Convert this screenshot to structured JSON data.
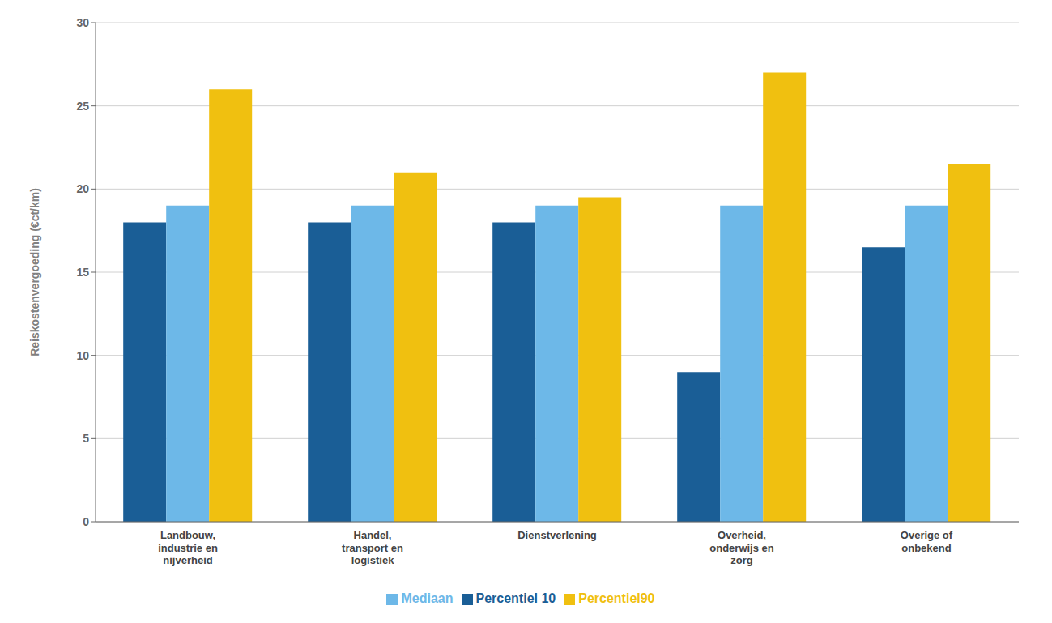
{
  "chart_data": {
    "type": "bar",
    "categories": [
      "Landbouw,\nindustrie en\nnijverheid",
      "Handel,\ntransport en\nlogistiek",
      "Dienstverlening",
      "Overheid,\nonderwijs en\nzorg",
      "Overige of\nonbekend"
    ],
    "series": [
      {
        "name": "Percentiel 10",
        "color": "#1a5e96",
        "values": [
          18.0,
          18.0,
          18.0,
          9.0,
          16.5
        ]
      },
      {
        "name": "Mediaan",
        "color": "#6db8e8",
        "values": [
          19.0,
          19.0,
          19.0,
          19.0,
          19.0
        ]
      },
      {
        "name": "Percentiel90",
        "color": "#f0c010",
        "values": [
          26.0,
          21.0,
          19.5,
          27.0,
          21.5
        ]
      }
    ],
    "ylabel": "Reiskostenvergoeding (€ct/km)",
    "ylim": [
      0,
      30
    ],
    "yticks": [
      0,
      5,
      10,
      15,
      20,
      25,
      30
    ],
    "grid": true,
    "legend": "bottom"
  }
}
